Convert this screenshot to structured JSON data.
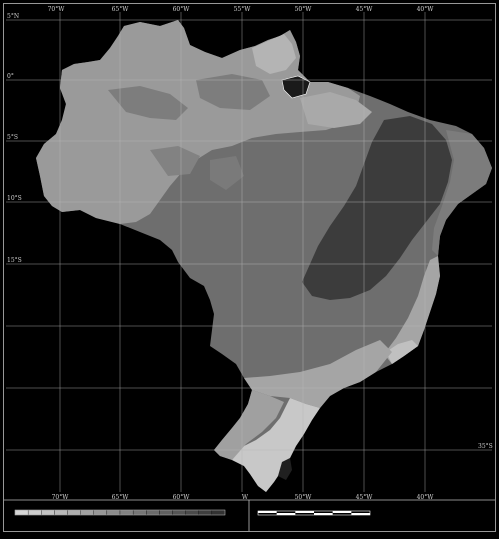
{
  "map": {
    "lon_labels_top": [
      "70°W",
      "65°W",
      "60°W",
      "55°W",
      "50°W",
      "45°W",
      "40°W"
    ],
    "lon_labels_bottom": [
      "70°W",
      "65°W",
      "60°W",
      "W",
      "50°W",
      "45°W",
      "40°W"
    ],
    "lat_labels": [
      "5°N",
      "0°",
      "5°S",
      "10°S",
      "15°S"
    ],
    "lat_label_right": "35°S"
  },
  "legend": {
    "class_count": 16,
    "class_colors": [
      "#d6d6d6",
      "#cdcdcd",
      "#c3c3c3",
      "#b9b9b9",
      "#aeaeae",
      "#a2a2a2",
      "#979797",
      "#8c8c8c",
      "#828282",
      "#777777",
      "#6c6c6c",
      "#616161",
      "#565656",
      "#4b4b4b",
      "#3f3f3f",
      "#333333"
    ]
  },
  "scale_bar": {
    "segments": 6
  },
  "colors": {
    "background": "#000000",
    "frame": "#bdbdbd",
    "grid": "#b8b8b8",
    "amazon": "#9a9a9a",
    "cerrado": "#6e6e6e",
    "northeast_dark": "#3c3c3c",
    "south_light": "#c8c8c8",
    "south_mid": "#a5a5a5"
  }
}
